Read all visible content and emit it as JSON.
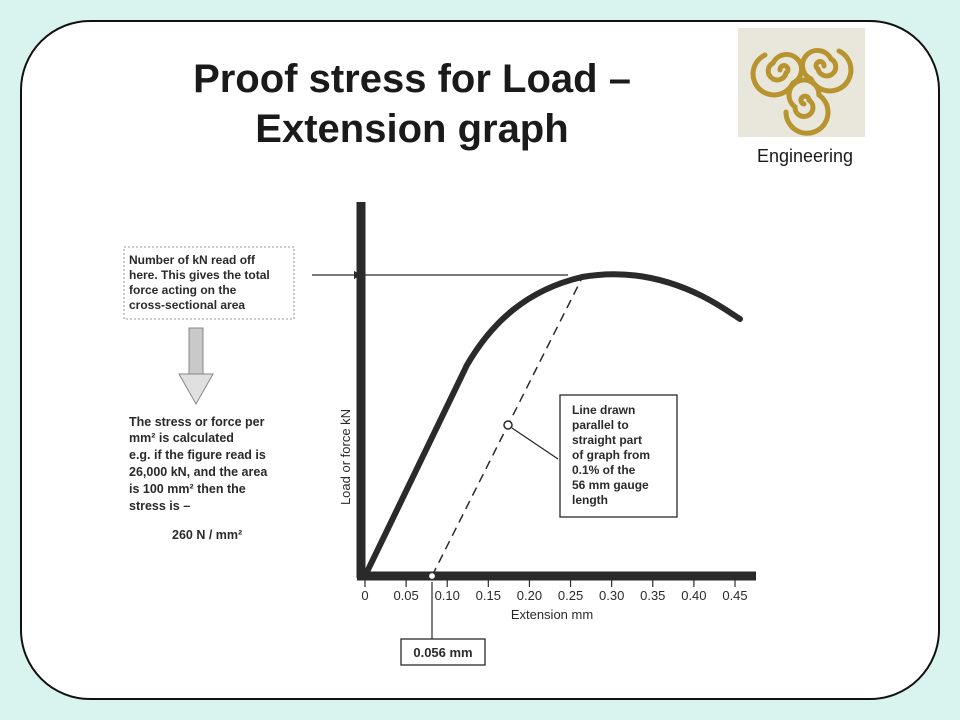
{
  "slide": {
    "title_line1": "Proof stress for Load –",
    "title_line2": "Extension graph",
    "logo_label": "Engineering"
  },
  "annotations": {
    "top_note": [
      "Number of kN read off",
      "here. This gives the total",
      "force acting on the",
      "cross-sectional area"
    ],
    "stress_note": [
      "The stress or force per",
      "mm² is calculated",
      "e.g. if the figure read is",
      "26,000 kN, and the area",
      "is 100 mm² then the",
      "stress is –"
    ],
    "stress_result": "260 N / mm²",
    "line_note": [
      "Line drawn",
      "parallel to",
      "straight part",
      "of graph from",
      "0.1% of the",
      "56 mm gauge",
      "length"
    ],
    "offset_value": "0.056 mm"
  },
  "colors": {
    "background": "#d9f3ee",
    "ink": "#2a2a2a",
    "logo_spiral": "#b8942f",
    "arrow": "#bdbdbd"
  },
  "chart_data": {
    "type": "line",
    "xlabel": "Extension mm",
    "ylabel": "Load or force kN",
    "x_ticks": [
      "0",
      "0.05",
      "0.10",
      "0.15",
      "0.20",
      "0.25",
      "0.30",
      "0.35",
      "0.40",
      "0.45"
    ],
    "xlim": [
      0,
      0.45
    ],
    "offset_line_start_x": 0.056
  }
}
